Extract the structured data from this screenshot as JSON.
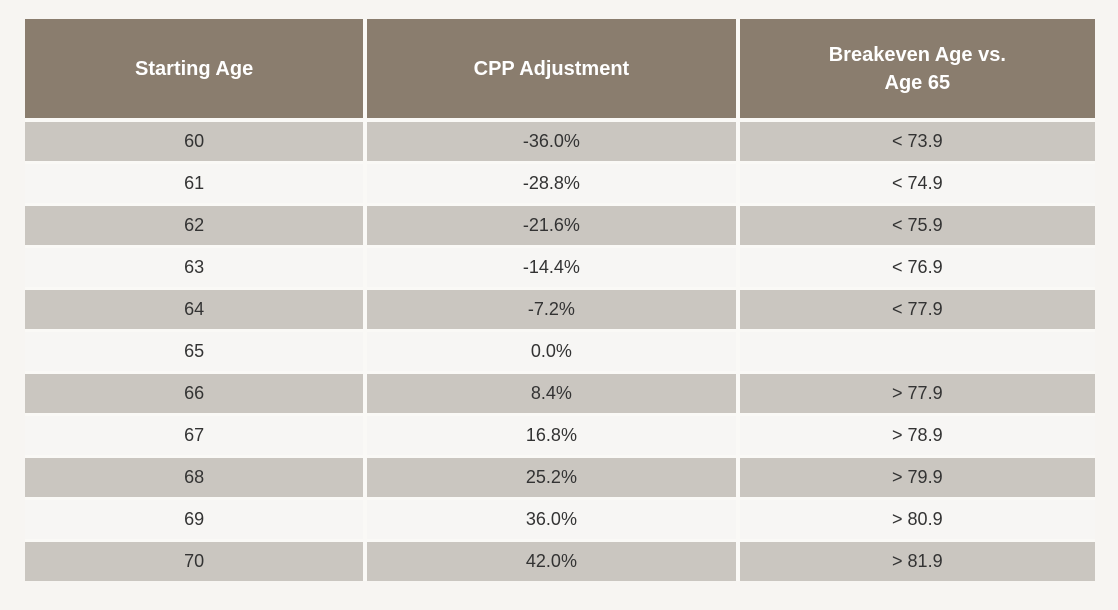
{
  "table": {
    "header_labels": [
      "Starting Age",
      "CPP Adjustment",
      "Breakeven Age vs.\nAge 65"
    ],
    "colors": {
      "page_background": "#f7f5f2",
      "header_background": "#8a7d6e",
      "header_text": "#ffffff",
      "stripe_row_background": "#cac6c0",
      "plain_row_background": "#f7f6f4",
      "body_text": "#333333",
      "separator": "#faf9f6"
    }
  },
  "chart_data": {
    "type": "table",
    "title": "",
    "columns": [
      "Starting Age",
      "CPP Adjustment",
      "Breakeven Age vs. Age 65"
    ],
    "rows": [
      [
        "60",
        "-36.0%",
        "< 73.9"
      ],
      [
        "61",
        "-28.8%",
        "< 74.9"
      ],
      [
        "62",
        "-21.6%",
        "< 75.9"
      ],
      [
        "63",
        "-14.4%",
        "< 76.9"
      ],
      [
        "64",
        "-7.2%",
        "< 77.9"
      ],
      [
        "65",
        "0.0%",
        ""
      ],
      [
        "66",
        "8.4%",
        "> 77.9"
      ],
      [
        "67",
        "16.8%",
        "> 78.9"
      ],
      [
        "68",
        "25.2%",
        "> 79.9"
      ],
      [
        "69",
        "36.0%",
        "> 80.9"
      ],
      [
        "70",
        "42.0%",
        "> 81.9"
      ]
    ]
  }
}
